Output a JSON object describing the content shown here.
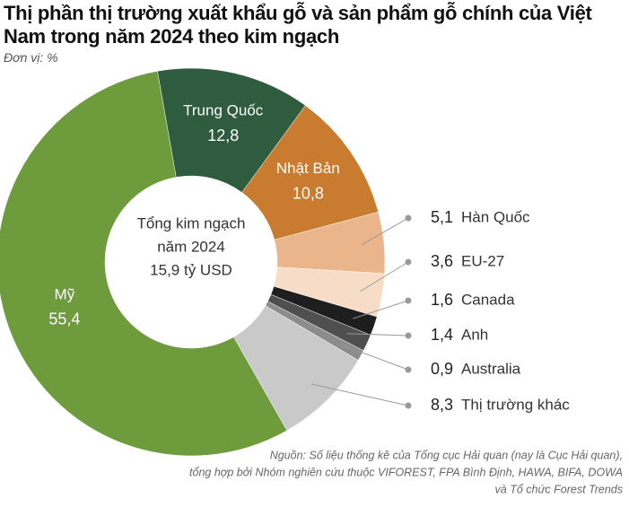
{
  "chart_data": {
    "type": "donut",
    "title": "Thị phần thị trường xuất khẩu gỗ và sản phẩm gỗ chính của Việt Nam trong năm 2024 theo kim ngạch",
    "unit": "Đơn vị: %",
    "center_text": [
      "Tổng kim ngạch",
      "năm 2024",
      "15,9 tỷ USD"
    ],
    "categories": [
      "Mỹ",
      "Trung Quốc",
      "Nhật Bản",
      "Hàn Quốc",
      "EU-27",
      "Canada",
      "Anh",
      "Australia",
      "Thị trường khác"
    ],
    "values": [
      55.4,
      12.8,
      10.8,
      5.1,
      3.6,
      1.6,
      1.4,
      0.9,
      8.3
    ],
    "value_labels": [
      "55,4",
      "12,8",
      "10,8",
      "5,1",
      "3,6",
      "1,6",
      "1,4",
      "0,9",
      "8,3"
    ],
    "colors": [
      "#6e9b3c",
      "#2f5b3f",
      "#c97b2f",
      "#eab58b",
      "#f7ddc7",
      "#1e1e1e",
      "#4f4f4f",
      "#8c8c8c",
      "#c9c9c9"
    ],
    "source": [
      "Nguồn: Số liệu thống kê của Tổng cục Hải quan (nay là Cục Hải quan),",
      "tổng hợp bởi Nhóm nghiên cứu thuộc VIFOREST, FPA Bình Định, HAWA, BIFA, DOWA",
      "và Tổ chức Forest Trends"
    ]
  }
}
